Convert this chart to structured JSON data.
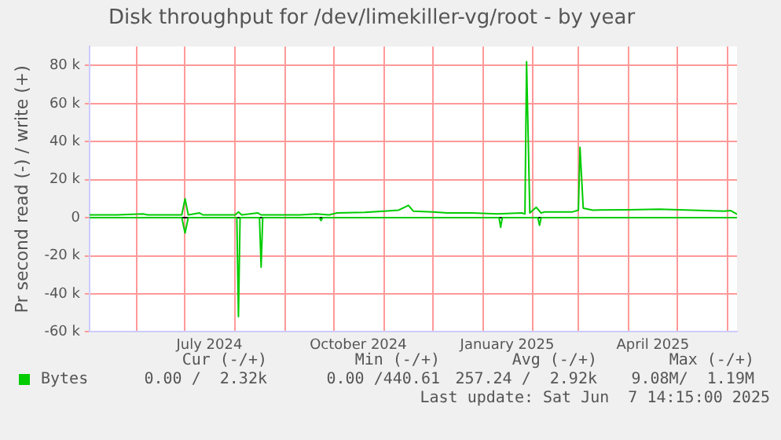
{
  "chart_data": {
    "type": "line",
    "title": "Disk throughput for /dev/limekiller-vg/root - by year",
    "ylabel": "Pr second read (-) / write (+)",
    "xlim": [
      "2024-05-03",
      "2025-06-07"
    ],
    "xticks": [
      {
        "value": "2024-06-01",
        "label": null
      },
      {
        "value": "2024-07-01",
        "label": null
      },
      {
        "value": "2024-07-16",
        "label": "July 2024"
      },
      {
        "value": "2024-08-01",
        "label": null
      },
      {
        "value": "2024-09-01",
        "label": null
      },
      {
        "value": "2024-10-01",
        "label": null
      },
      {
        "value": "2024-10-16",
        "label": "October 2024"
      },
      {
        "value": "2024-11-01",
        "label": null
      },
      {
        "value": "2024-12-01",
        "label": null
      },
      {
        "value": "2025-01-01",
        "label": null
      },
      {
        "value": "2025-01-16",
        "label": "January 2025"
      },
      {
        "value": "2025-02-01",
        "label": null
      },
      {
        "value": "2025-03-01",
        "label": null
      },
      {
        "value": "2025-04-01",
        "label": null
      },
      {
        "value": "2025-04-16",
        "label": "April 2025"
      },
      {
        "value": "2025-05-01",
        "label": null
      },
      {
        "value": "2025-06-01",
        "label": null
      }
    ],
    "ylim": [
      -60000,
      90000
    ],
    "yticks": [
      {
        "value": -60000,
        "label": "-60 k"
      },
      {
        "value": -40000,
        "label": "-40 k"
      },
      {
        "value": -20000,
        "label": "-20 k"
      },
      {
        "value": 0,
        "label": "0"
      },
      {
        "value": 20000,
        "label": "20 k"
      },
      {
        "value": 40000,
        "label": "40 k"
      },
      {
        "value": 60000,
        "label": "60 k"
      },
      {
        "value": 80000,
        "label": "80 k"
      }
    ],
    "grid": true,
    "legend": "bottom left",
    "marker": "none",
    "line_style": "solid",
    "ref_lines": [
      {
        "axis": "y",
        "value": 0,
        "color": "#000000"
      }
    ],
    "series": [
      {
        "name": "Bytes",
        "color": "#00cc00",
        "x": [
          "2024-05-03",
          "2024-05-20",
          "2024-06-05",
          "2024-06-08",
          "2024-06-29",
          "2024-07-01",
          "2024-07-03",
          "2024-07-10",
          "2024-07-12",
          "2024-08-01",
          "2024-08-03",
          "2024-08-05",
          "2024-08-15",
          "2024-08-17",
          "2024-09-10",
          "2024-09-20",
          "2024-09-28",
          "2024-10-03",
          "2024-10-20",
          "2024-11-01",
          "2024-11-10",
          "2024-11-16",
          "2024-11-19",
          "2024-12-01",
          "2024-12-10",
          "2024-12-25",
          "2025-01-10",
          "2025-01-25",
          "2025-01-27",
          "2025-01-28",
          "2025-01-30",
          "2025-02-03",
          "2025-02-06",
          "2025-02-08",
          "2025-02-25",
          "2025-03-01",
          "2025-03-02",
          "2025-03-04",
          "2025-03-10",
          "2025-04-01",
          "2025-04-20",
          "2025-05-10",
          "2025-05-30",
          "2025-06-03",
          "2025-06-07"
        ],
        "values": [
          1500,
          1500,
          2000,
          1500,
          1500,
          10000,
          1500,
          2500,
          1500,
          1500,
          3000,
          1500,
          2500,
          1500,
          1500,
          2000,
          1500,
          2500,
          2800,
          3500,
          4000,
          6500,
          3500,
          3000,
          2500,
          2500,
          2000,
          2500,
          2000,
          82000,
          2500,
          5500,
          2500,
          3000,
          3000,
          4000,
          37000,
          5000,
          4000,
          4200,
          4500,
          4000,
          3500,
          3800,
          1800
        ]
      },
      {
        "color": "#00cc00",
        "x": [
          "2024-05-03",
          "2024-06-29",
          "2024-07-01",
          "2024-07-03",
          "2024-08-02",
          "2024-08-03",
          "2024-08-04",
          "2024-08-16",
          "2024-08-17",
          "2024-08-18",
          "2024-09-22",
          "2024-09-23",
          "2024-09-24",
          "2025-01-11",
          "2025-01-12",
          "2025-01-13",
          "2025-02-04",
          "2025-02-05",
          "2025-02-06",
          "2025-06-07"
        ],
        "values": [
          0,
          0,
          -8000,
          0,
          0,
          -52000,
          0,
          0,
          -26000,
          0,
          0,
          -1500,
          0,
          0,
          -5000,
          0,
          0,
          -4000,
          0,
          0
        ]
      }
    ],
    "annotations": [
      "Cur (-/+)",
      "Min (-/+)",
      "Avg (-/+)",
      "Max (-/+)",
      "0.00 /  2.32k",
      "0.00 /440.61",
      "257.24 /  2.92k",
      "9.08M/  1.19M",
      "Last update: Sat Jun  7 14:15:00 2025"
    ]
  }
}
